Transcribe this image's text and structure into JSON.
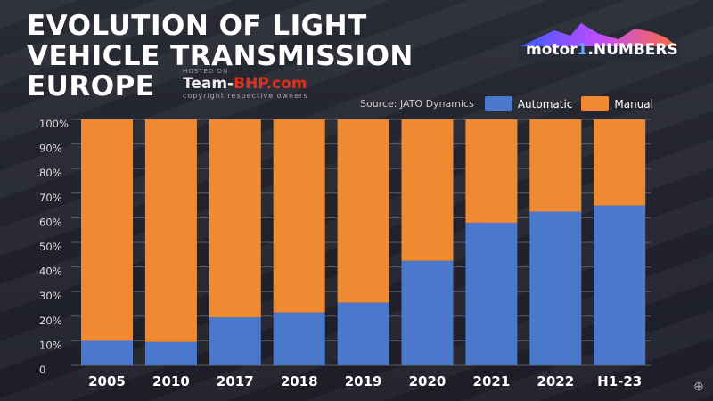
{
  "title_lines": [
    "EVOLUTION OF LIGHT",
    "VEHICLE TRANSMISSION",
    "EUROPE"
  ],
  "logo": {
    "text_left": "motor",
    "text_num": "1",
    "text_right": ".NUMBERS"
  },
  "source": "Source: JATO Dynamics",
  "watermark": {
    "hosted": "HOSTED ON:",
    "brand_a": "Team-",
    "brand_b": "BHP.com",
    "copyright": "copyright respective owners"
  },
  "colors": {
    "automatic": "#4a78cc",
    "manual": "#f08a32"
  },
  "chart_data": {
    "type": "bar",
    "stacked": true,
    "categories": [
      "2005",
      "2010",
      "2017",
      "2018",
      "2019",
      "2020",
      "2021",
      "2022",
      "H1-23"
    ],
    "series": [
      {
        "name": "Automatic",
        "values": [
          10,
          9.5,
          19.5,
          21.5,
          25.5,
          42.5,
          58,
          62.5,
          65
        ]
      },
      {
        "name": "Manual",
        "values": [
          90,
          90.5,
          80.5,
          78.5,
          74.5,
          57.5,
          42,
          37.5,
          35
        ]
      }
    ],
    "yticks": [
      "0",
      "10%",
      "20%",
      "30%",
      "40%",
      "50%",
      "60%",
      "70%",
      "80%",
      "90%",
      "100%"
    ],
    "ylim": [
      0,
      100
    ],
    "grid": true,
    "legend": "top-right"
  }
}
